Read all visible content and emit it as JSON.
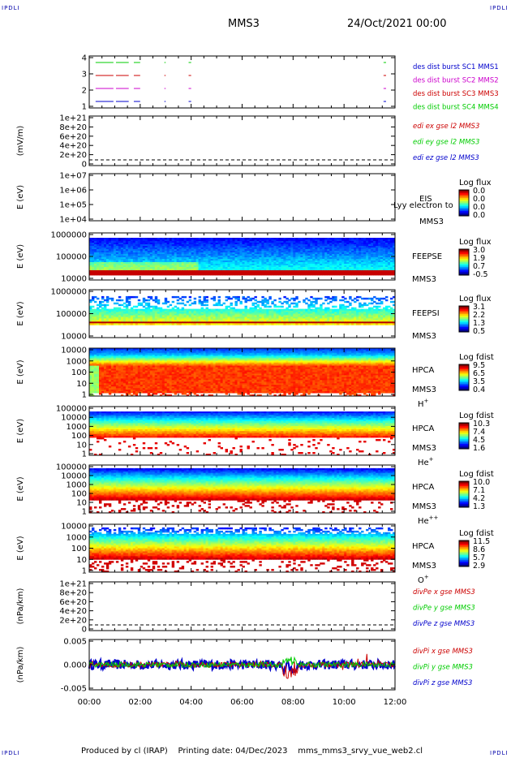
{
  "header": {
    "corner_label": "IPDLI",
    "spacecraft": "MMS3",
    "date": "24/Oct/2021 00:00"
  },
  "footer": {
    "text": "Produced by cl (IRAP)    Printing date: 04/Dec/2023    mms_mms3_srvy_vue_web2.cl"
  },
  "colors": {
    "mms1": "#0000cc",
    "mms2": "#cc00cc",
    "mms3": "#cc0000",
    "mms4": "#00cc00",
    "x": "#cc0000",
    "y": "#00cc00",
    "z": "#0000cc"
  },
  "time_axis": {
    "ticks": [
      "00:00",
      "02:00",
      "04:00",
      "06:00",
      "08:00",
      "10:00",
      "12:00"
    ]
  },
  "chart_data": [
    {
      "type": "line",
      "id": "burst",
      "title": "",
      "ylabel": "",
      "ylim": [
        0.5,
        4.5
      ],
      "yticks": [
        "4",
        "3",
        "2",
        "1"
      ],
      "legend": [
        {
          "label": "des dist burst SC1 MMS1",
          "color": "#0000cc"
        },
        {
          "label": "des dist burst SC2 MMS2",
          "color": "#cc00cc"
        },
        {
          "label": "des dist burst SC3 MMS3",
          "color": "#cc0000"
        },
        {
          "label": "des dist burst SC4 MMS4",
          "color": "#00cc00"
        }
      ],
      "series": [
        {
          "name": "des dist burst SC1 MMS1",
          "y": 1,
          "intervals": [
            [
              0.25,
              0.95
            ],
            [
              1.05,
              1.55
            ],
            [
              1.75,
              2.0
            ],
            [
              2.95,
              3.0
            ],
            [
              3.9,
              4.0
            ],
            [
              11.55,
              11.65
            ]
          ]
        },
        {
          "name": "des dist burst SC2 MMS2",
          "y": 2,
          "intervals": [
            [
              0.25,
              0.95
            ],
            [
              1.05,
              1.55
            ],
            [
              1.75,
              2.0
            ],
            [
              2.95,
              3.0
            ],
            [
              3.9,
              4.0
            ],
            [
              11.55,
              11.65
            ]
          ]
        },
        {
          "name": "des dist burst SC3 MMS3",
          "y": 3,
          "intervals": [
            [
              0.25,
              0.95
            ],
            [
              1.05,
              1.55
            ],
            [
              1.75,
              2.0
            ],
            [
              2.95,
              3.0
            ],
            [
              3.9,
              4.0
            ],
            [
              11.55,
              11.65
            ]
          ]
        },
        {
          "name": "des dist burst SC4 MMS4",
          "y": 4,
          "intervals": [
            [
              0.25,
              0.95
            ],
            [
              1.05,
              1.55
            ],
            [
              1.75,
              2.0
            ],
            [
              2.95,
              3.0
            ],
            [
              3.9,
              4.0
            ],
            [
              11.55,
              11.65
            ]
          ]
        }
      ]
    },
    {
      "type": "line",
      "id": "edi",
      "ylabel": "(mV/m)",
      "yticks": [
        "1e+21",
        "8e+20",
        "6e+20",
        "4e+20",
        "2e+20",
        "0"
      ],
      "legend": [
        {
          "label": "edi ex gse l2 MMS3",
          "color": "#cc0000"
        },
        {
          "label": "edi ey gse l2 MMS3",
          "color": "#00cc00"
        },
        {
          "label": "edi ez gse l2 MMS3",
          "color": "#0000cc"
        }
      ]
    },
    {
      "type": "heatmap",
      "id": "eis",
      "ylabel": "E (eV)",
      "yticks": [
        "1e+07",
        "1e+06",
        "1e+05",
        "1e+04"
      ],
      "side": [
        "EIS",
        "MMS3"
      ],
      "overlay": "Lyy electron to",
      "colorbar": {
        "title": "Log flux",
        "ticks": [
          "0.0",
          "0.0",
          "0.0",
          "0.0"
        ]
      }
    },
    {
      "type": "heatmap",
      "id": "feepse",
      "ylabel": "E (eV)",
      "yticks": [
        "1000000",
        "100000",
        "10000"
      ],
      "side": [
        "FEEPSE",
        "MMS3"
      ],
      "colorbar": {
        "title": "Log flux",
        "ticks": [
          "3.0",
          "1.9",
          "0.7",
          "-0.5"
        ]
      }
    },
    {
      "type": "heatmap",
      "id": "feepsi",
      "ylabel": "E (eV)",
      "yticks": [
        "1000000",
        "100000",
        "10000"
      ],
      "side": [
        "FEEPSI",
        "MMS3"
      ],
      "colorbar": {
        "title": "Log flux",
        "ticks": [
          "3.1",
          "2.2",
          "1.3",
          "0.5"
        ]
      }
    },
    {
      "type": "heatmap",
      "id": "hpca_h",
      "ylabel": "E (eV)",
      "yticks": [
        "10000",
        "1000",
        "100",
        "10",
        "1"
      ],
      "side": [
        "HPCA",
        "MMS3",
        "H+"
      ],
      "colorbar": {
        "title": "Log fdist",
        "ticks": [
          "9.5",
          "6.5",
          "3.5",
          "0.4"
        ]
      }
    },
    {
      "type": "heatmap",
      "id": "hpca_he",
      "ylabel": "E (eV)",
      "yticks": [
        "100000",
        "10000",
        "1000",
        "100",
        "10",
        "1"
      ],
      "side": [
        "HPCA",
        "MMS3",
        "He+"
      ],
      "colorbar": {
        "title": "Log fdist",
        "ticks": [
          "10.3",
          "7.4",
          "4.5",
          "1.6"
        ]
      }
    },
    {
      "type": "heatmap",
      "id": "hpca_hepp",
      "ylabel": "E (eV)",
      "yticks": [
        "100000",
        "10000",
        "1000",
        "100",
        "10",
        "1"
      ],
      "side": [
        "HPCA",
        "MMS3",
        "He++"
      ],
      "colorbar": {
        "title": "Log fdist",
        "ticks": [
          "10.0",
          "7.1",
          "4.2",
          "1.3"
        ]
      }
    },
    {
      "type": "heatmap",
      "id": "hpca_o",
      "ylabel": "E (eV)",
      "yticks": [
        "10000",
        "1000",
        "100",
        "10",
        "1"
      ],
      "side": [
        "HPCA",
        "MMS3",
        "O+"
      ],
      "colorbar": {
        "title": "Log fdist",
        "ticks": [
          "11.5",
          "8.6",
          "5.7",
          "2.9"
        ]
      }
    },
    {
      "type": "line",
      "id": "divpe",
      "ylabel": "(nPa/km)",
      "yticks": [
        "1e+21",
        "8e+20",
        "6e+20",
        "4e+20",
        "2e+20",
        "0"
      ],
      "legend": [
        {
          "label": "divPe x gse MMS3",
          "color": "#cc0000"
        },
        {
          "label": "divPe y gse MMS3",
          "color": "#00cc00"
        },
        {
          "label": "divPe z gse MMS3",
          "color": "#0000cc"
        }
      ]
    },
    {
      "type": "line",
      "id": "divpi",
      "ylabel": "(nPa/km)",
      "ylim": [
        -0.0075,
        0.0075
      ],
      "yticks": [
        "0.005",
        "0.000",
        "-0.005"
      ],
      "legend": [
        {
          "label": "divPi x gse MMS3",
          "color": "#cc0000"
        },
        {
          "label": "divPi y gse MMS3",
          "color": "#00cc00"
        },
        {
          "label": "divPi z gse MMS3",
          "color": "#0000cc"
        }
      ]
    }
  ]
}
